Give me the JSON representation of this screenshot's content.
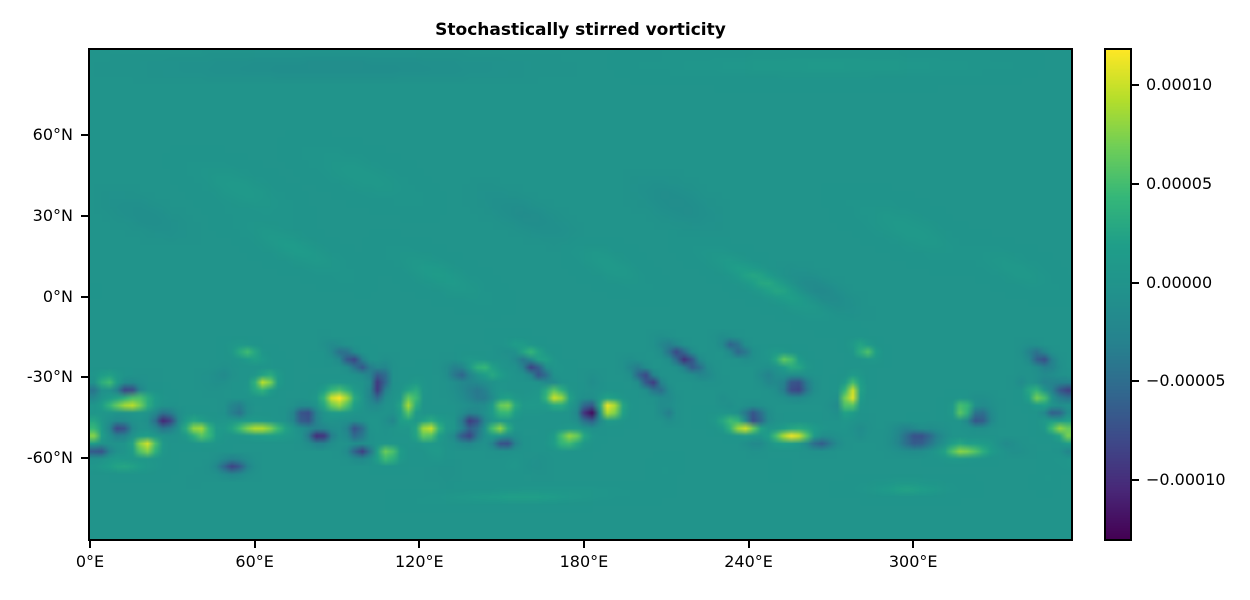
{
  "chart_data": {
    "type": "heatmap",
    "title": "Stochastically stirred vorticity",
    "x_axis": {
      "range_deg": [
        0,
        357.5
      ],
      "ticks": [
        {
          "deg": 0,
          "label": "0°E"
        },
        {
          "deg": 60,
          "label": "60°E"
        },
        {
          "deg": 120,
          "label": "120°E"
        },
        {
          "deg": 180,
          "label": "180°E"
        },
        {
          "deg": 240,
          "label": "240°E"
        },
        {
          "deg": 300,
          "label": "300°E"
        }
      ]
    },
    "y_axis": {
      "range_deg": [
        91.5,
        -90
      ],
      "ticks": [
        {
          "deg": 60,
          "label": "60°N"
        },
        {
          "deg": 30,
          "label": "30°N"
        },
        {
          "deg": 0,
          "label": "0°N"
        },
        {
          "deg": -30,
          "label": "-30°N"
        },
        {
          "deg": -60,
          "label": "-60°N"
        }
      ]
    },
    "colorbar": {
      "vmin_1e4": -1.3,
      "vmax_1e4": 1.18,
      "ticks": [
        {
          "value_1e4": 1.0,
          "label": "0.00010"
        },
        {
          "value_1e4": 0.5,
          "label": "0.00005"
        },
        {
          "value_1e4": 0.0,
          "label": "0.00000"
        },
        {
          "value_1e4": -0.5,
          "label": "−0.00005"
        },
        {
          "value_1e4": -1.0,
          "label": "−0.00010"
        }
      ]
    },
    "colormap": {
      "name": "viridis",
      "stops": [
        "#440154",
        "#482878",
        "#3e4989",
        "#31688e",
        "#26828e",
        "#21918c",
        "#1f9e89",
        "#35b779",
        "#6ece58",
        "#b5de2b",
        "#fde725"
      ]
    },
    "field": {
      "background_value_1e4": 0,
      "grid": {
        "nlon": 128,
        "nlat": 64
      },
      "feature_format": [
        "lon_deg",
        "lat_deg",
        "amp_1e4",
        "rx_deg",
        "ry_deg",
        "rot_deg"
      ],
      "features": [
        [
          14,
          -39.5,
          1.35,
          7,
          2.5,
          5
        ],
        [
          6.5,
          -31,
          0.6,
          4,
          2,
          0
        ],
        [
          0.5,
          -52,
          0.7,
          3,
          2.5,
          0
        ],
        [
          20.5,
          -55.5,
          1.2,
          4,
          2.8,
          0
        ],
        [
          40,
          -49.5,
          0.95,
          5,
          2.8,
          -20
        ],
        [
          62,
          -49,
          0.95,
          9,
          2,
          -5
        ],
        [
          64,
          -32,
          1.0,
          4,
          2.5,
          25
        ],
        [
          58,
          -21,
          0.5,
          5,
          2,
          -20
        ],
        [
          91,
          -38,
          1.3,
          5,
          3.5,
          0
        ],
        [
          117,
          -40,
          0.9,
          2.5,
          6,
          -20
        ],
        [
          109,
          -58.5,
          0.9,
          4,
          2.2,
          0
        ],
        [
          124,
          -49.5,
          1.1,
          4,
          3,
          20
        ],
        [
          145,
          -27,
          0.5,
          6,
          2,
          -20
        ],
        [
          150,
          -49.5,
          0.9,
          3.5,
          2,
          0
        ],
        [
          152,
          -41,
          0.85,
          4,
          3,
          0
        ],
        [
          171,
          -37,
          1.1,
          4,
          3,
          -20
        ],
        [
          176,
          -52.5,
          0.9,
          5,
          2.5,
          10
        ],
        [
          162,
          -21,
          0.45,
          7,
          2,
          -25
        ],
        [
          190.5,
          -41.5,
          1.35,
          4,
          3,
          0
        ],
        [
          240,
          -48.5,
          1.15,
          7,
          2.2,
          -15
        ],
        [
          258,
          -51.5,
          1.15,
          7,
          2.2,
          5
        ],
        [
          256,
          -24,
          0.7,
          5,
          2,
          -20
        ],
        [
          279,
          -37,
          1.25,
          2.5,
          5.5,
          -15
        ],
        [
          284.5,
          -20,
          0.6,
          4,
          2,
          -25
        ],
        [
          320.5,
          -42,
          0.95,
          3,
          2.5,
          0
        ],
        [
          322,
          -57,
          0.7,
          8,
          2,
          5
        ],
        [
          348,
          -37,
          0.8,
          4,
          2.5,
          -35
        ],
        [
          355,
          -48,
          0.85,
          5,
          2.5,
          -30
        ],
        [
          10,
          -62,
          0.35,
          10,
          1.8,
          -5
        ],
        [
          160,
          -74,
          0.22,
          25,
          2,
          2
        ],
        [
          300,
          -71,
          0.25,
          12,
          2,
          0
        ],
        [
          27.5,
          -46,
          -1.1,
          4,
          3,
          0
        ],
        [
          14,
          -34.6,
          -0.95,
          4,
          2.2,
          0
        ],
        [
          11,
          -49.3,
          -0.9,
          3.5,
          2.5,
          0
        ],
        [
          3,
          -57.7,
          -0.8,
          4,
          2,
          0
        ],
        [
          52.4,
          -62.9,
          -0.85,
          5,
          2.5,
          0
        ],
        [
          54,
          -42,
          -0.7,
          3,
          2,
          0
        ],
        [
          79,
          -44.5,
          -1.0,
          4,
          3,
          0
        ],
        [
          84.2,
          -51.8,
          -1.1,
          4,
          2.5,
          0
        ],
        [
          98,
          -50,
          -0.9,
          3,
          2.5,
          0
        ],
        [
          97,
          -24,
          -0.9,
          8,
          2.2,
          -32
        ],
        [
          106,
          -33,
          -1.0,
          2.5,
          6,
          -15
        ],
        [
          99.6,
          -57.7,
          -0.9,
          4,
          2,
          0
        ],
        [
          135.5,
          -28.3,
          -0.6,
          4,
          2.5,
          -20
        ],
        [
          143,
          -36,
          -0.45,
          7,
          4,
          -10
        ],
        [
          139.9,
          -46.7,
          -1.0,
          4,
          3,
          0
        ],
        [
          138.4,
          -52.2,
          -0.85,
          4,
          2,
          0
        ],
        [
          152,
          -54,
          -0.9,
          4,
          2,
          0
        ],
        [
          163.7,
          -27.3,
          -0.95,
          7,
          2.2,
          -35
        ],
        [
          183.5,
          -43,
          -1.4,
          3.5,
          3.5,
          0
        ],
        [
          205,
          -31,
          -1.0,
          7,
          2.2,
          -40
        ],
        [
          218,
          -23,
          -1.0,
          8,
          2.5,
          -35
        ],
        [
          237,
          -19,
          -0.75,
          5,
          2,
          -30
        ],
        [
          243.5,
          -45,
          -1.0,
          4,
          3,
          0
        ],
        [
          259,
          -33.5,
          -1.05,
          4.5,
          3,
          0
        ],
        [
          268,
          -54,
          -0.7,
          5,
          2,
          0
        ],
        [
          304,
          -53,
          -0.85,
          7,
          3,
          5
        ],
        [
          326,
          -45,
          -0.9,
          4,
          2.5,
          0
        ],
        [
          349,
          -23,
          -0.8,
          5,
          2.5,
          -30
        ],
        [
          354,
          -44,
          -0.85,
          4,
          2.5,
          0
        ],
        [
          358,
          -35,
          -0.9,
          4,
          3,
          0
        ],
        [
          248,
          5,
          0.3,
          18,
          3.5,
          -28
        ],
        [
          268,
          2,
          -0.18,
          12,
          4,
          -28
        ],
        [
          75,
          18,
          0.15,
          16,
          4,
          -25
        ],
        [
          128,
          8,
          0.15,
          14,
          4,
          -25
        ],
        [
          55,
          40,
          0.12,
          14,
          5,
          -25
        ],
        [
          160,
          30,
          -0.12,
          16,
          5,
          -25
        ],
        [
          215,
          35,
          -0.12,
          14,
          6,
          -25
        ],
        [
          300,
          25,
          0.12,
          16,
          5,
          -25
        ],
        [
          340,
          10,
          0.1,
          12,
          4,
          -25
        ],
        [
          20,
          30,
          -0.1,
          14,
          5,
          -25
        ],
        [
          100,
          45,
          0.1,
          16,
          5,
          -22
        ],
        [
          190,
          12,
          0.12,
          12,
          4,
          -28
        ],
        [
          90,
          85,
          -0.12,
          60,
          4,
          0
        ],
        [
          270,
          86,
          0.1,
          50,
          4,
          0
        ]
      ],
      "noise": {
        "seed": 7,
        "count": 50,
        "band_center_lat": -43,
        "band_sigma_deg": 14,
        "lat_min": -68,
        "lat_max": -17,
        "amp_1e4": 0.55,
        "radius_min_deg": 2.2,
        "radius_max_deg": 5.0
      }
    }
  }
}
